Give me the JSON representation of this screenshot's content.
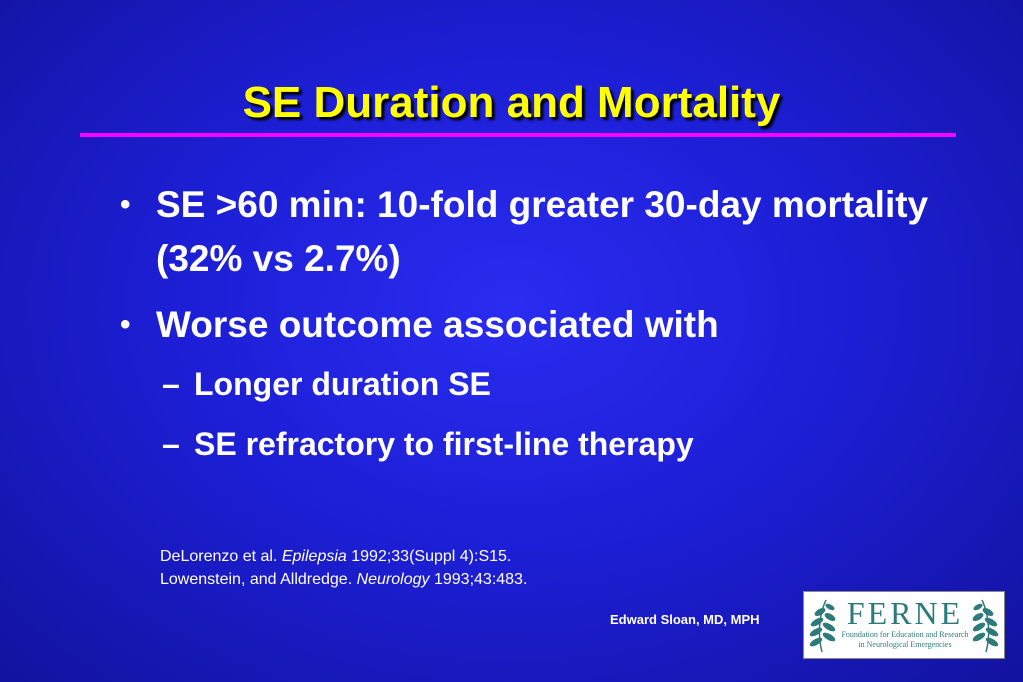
{
  "slide": {
    "title": "SE Duration and Mortality",
    "bullets": [
      {
        "text": "SE >60 min:  10-fold greater 30-day mortality (32% vs 2.7%)"
      },
      {
        "text": "Worse outcome associated with",
        "sub": [
          "Longer duration SE",
          "SE refractory to first-line therapy"
        ]
      }
    ],
    "references": [
      {
        "authors": "DeLorenzo et al. ",
        "journal": "Epilepsia",
        "citation": " 1992;33(Suppl 4):S15."
      },
      {
        "authors": "Lowenstein, and Alldredge. ",
        "journal": "Neurology",
        "citation": " 1993;43:483."
      }
    ],
    "author": "Edward Sloan, MD, MPH",
    "logo": {
      "name": "FERNE",
      "subtitle_line1": "Foundation for Education and Research",
      "subtitle_line2": "in Neurological Emergencies",
      "icon": "laurel-branch-icon",
      "color": "#2d7a7a"
    },
    "colors": {
      "title": "#ffff00",
      "rule": "#ff00ff",
      "background": "#1d1fd6",
      "text": "#ffffff"
    }
  }
}
